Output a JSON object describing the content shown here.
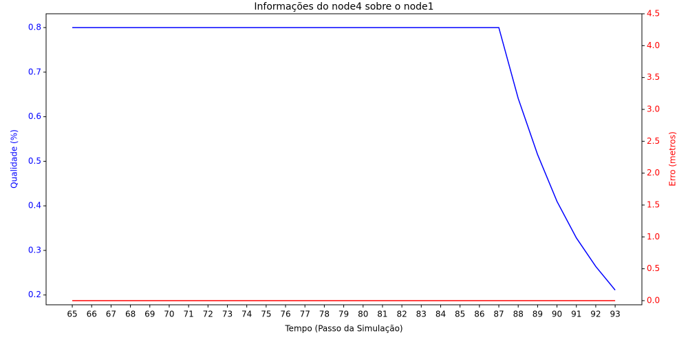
{
  "chart_data": {
    "type": "line",
    "title": "Informações do node4 sobre o node1",
    "x_label": "Tempo (Passo da Simulação)",
    "y_label": "Qualidade (%)",
    "y2_label": "Erro (metros)",
    "x": [
      65,
      66,
      67,
      68,
      69,
      70,
      71,
      72,
      73,
      74,
      75,
      76,
      77,
      78,
      79,
      80,
      81,
      82,
      83,
      84,
      85,
      86,
      87,
      88,
      89,
      90,
      91,
      92,
      93
    ],
    "xlim": [
      63.65,
      94.38
    ],
    "xticks": [
      65,
      66,
      67,
      68,
      69,
      70,
      71,
      72,
      73,
      74,
      75,
      76,
      77,
      78,
      79,
      80,
      81,
      82,
      83,
      84,
      85,
      86,
      87,
      88,
      89,
      90,
      91,
      92,
      93
    ],
    "ylim": [
      0.178,
      0.831
    ],
    "yticks": [
      0.2,
      0.3,
      0.4,
      0.5,
      0.6,
      0.7,
      0.8
    ],
    "y2lim": [
      -0.065,
      4.5
    ],
    "y2ticks": [
      {
        "value": 0,
        "label": "0.0"
      },
      0.5,
      {
        "value": 1,
        "label": "1.0"
      },
      1.5,
      {
        "value": 2,
        "label": "2.0"
      },
      2.5,
      {
        "value": 3,
        "label": "3.0"
      },
      3.5,
      {
        "value": 4,
        "label": "4.0"
      },
      4.5
    ],
    "y_color": "#0000ff",
    "y2_color": "#ff0000",
    "grid": false,
    "series": [
      {
        "color": "#0000ff",
        "axis": "y",
        "values": [
          0.8,
          0.8,
          0.8,
          0.8,
          0.8,
          0.8,
          0.8,
          0.8,
          0.8,
          0.8,
          0.8,
          0.8,
          0.8,
          0.8,
          0.8,
          0.8,
          0.8,
          0.8,
          0.8,
          0.8,
          0.8,
          0.8,
          0.8,
          0.641,
          0.515,
          0.41,
          0.328,
          0.264,
          0.211
        ]
      },
      {
        "color": "#ff0000",
        "axis": "y2",
        "values": [
          0,
          0,
          0,
          0,
          0,
          0,
          0,
          0,
          0,
          0,
          0,
          0,
          0,
          0,
          0,
          0,
          0,
          0,
          0,
          0,
          0,
          0,
          0,
          0,
          0,
          0,
          0,
          0,
          0
        ]
      }
    ]
  }
}
